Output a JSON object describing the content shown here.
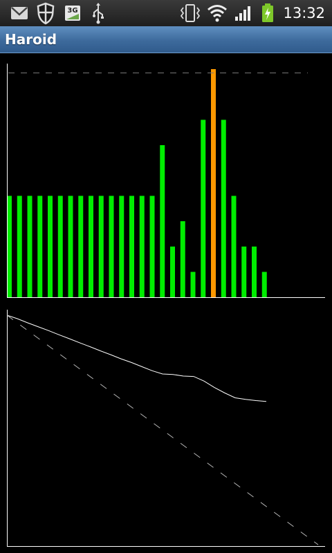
{
  "status_bar": {
    "time": "13:32",
    "left_icons": [
      "gmail-icon",
      "shield-icon",
      "3g-data-icon",
      "usb-icon"
    ],
    "right_icons": [
      "vibrate-icon",
      "wifi-icon",
      "signal-icon",
      "battery-charging-icon"
    ]
  },
  "app": {
    "title": "Haroid"
  },
  "colors": {
    "bar": "#00ee00",
    "highlight_bar": "#ff9900",
    "title_bar": "#3d6a9c",
    "axis": "#ffffff"
  },
  "chart_data": [
    {
      "type": "bar",
      "values": [
        4,
        4,
        4,
        4,
        4,
        4,
        4,
        4,
        4,
        4,
        4,
        4,
        4,
        4,
        4,
        6,
        2,
        3,
        1,
        7,
        9,
        7,
        4,
        2,
        2,
        1
      ],
      "highlight_index": 20,
      "ylim": [
        0,
        9
      ],
      "reference_line": 8.85,
      "grid": false
    },
    {
      "type": "line",
      "series": [
        {
          "x": [
            0,
            1,
            2,
            3,
            4,
            5,
            6,
            7,
            8,
            9,
            10,
            11,
            12,
            13,
            14,
            15,
            16,
            17,
            18,
            19,
            20,
            21,
            22,
            23,
            24,
            25
          ],
          "values": [
            100,
            98.5,
            96.7,
            95.0,
            93.3,
            91.5,
            89.8,
            88.0,
            86.3,
            84.5,
            82.8,
            81.0,
            79.4,
            77.6,
            75.8,
            74.4,
            74.2,
            73.5,
            73.3,
            71.3,
            68.5,
            66.1,
            64.0,
            63.3,
            62.8,
            62.4
          ]
        },
        {
          "x": [
            0,
            30
          ],
          "values": [
            100,
            0
          ],
          "style": "dashed"
        }
      ],
      "xlim": [
        0,
        30
      ],
      "ylim": [
        0,
        100
      ],
      "grid": false
    }
  ]
}
